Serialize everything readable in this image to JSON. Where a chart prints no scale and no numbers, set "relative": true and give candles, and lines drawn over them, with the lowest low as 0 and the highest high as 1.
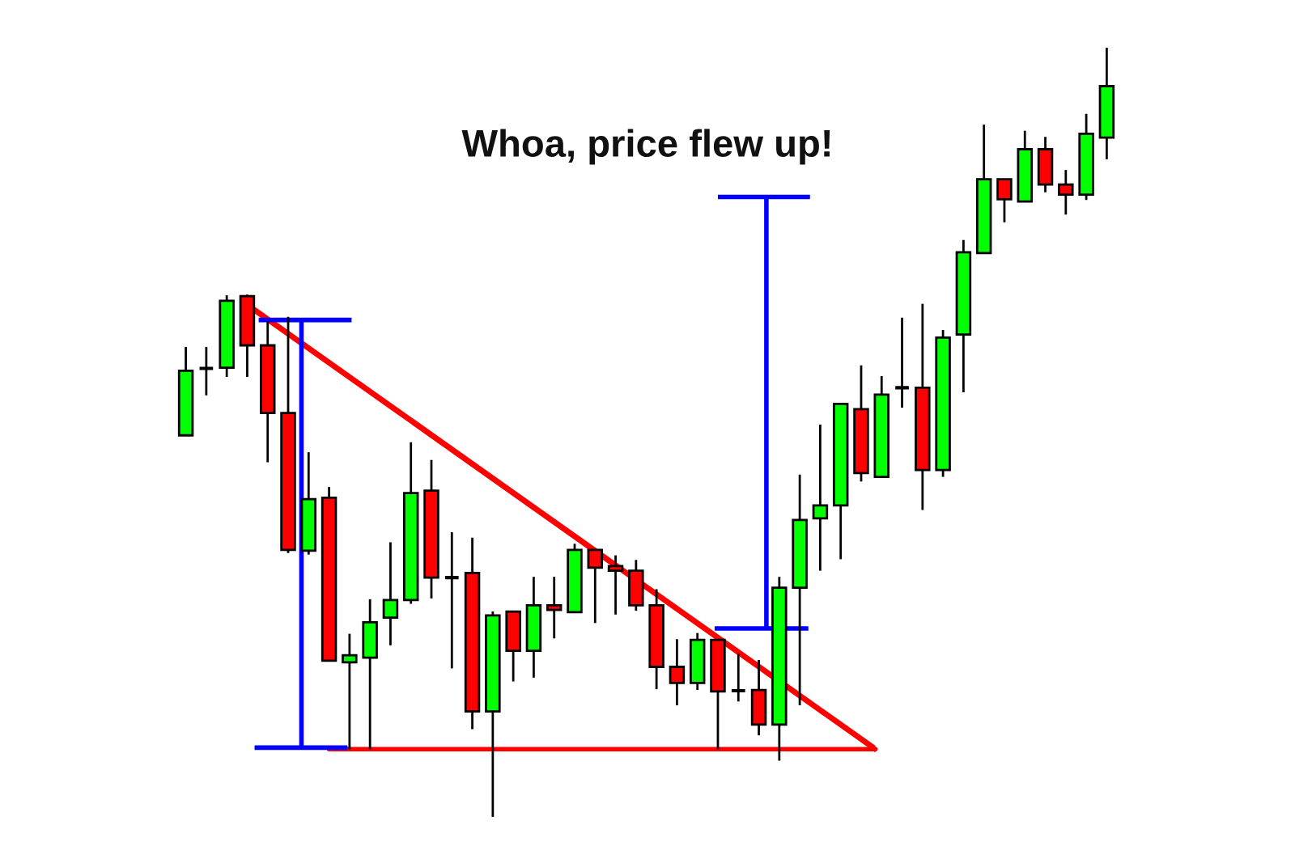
{
  "chart_data": {
    "type": "candlestick",
    "relative": true,
    "ref_lines": [
      {
        "axis": "y",
        "value": 0.088,
        "color": "#ff0000"
      }
    ],
    "annotations": [
      "Whoa, price flew up!"
    ],
    "categories": [
      null,
      null,
      null,
      null,
      null,
      null,
      null,
      null,
      null,
      null,
      null,
      null,
      null,
      null,
      null,
      null,
      null,
      null,
      null,
      null,
      null,
      null,
      null,
      null,
      null,
      null,
      null,
      null,
      null,
      null,
      null,
      null,
      null,
      null,
      null,
      null,
      null,
      null,
      null,
      null,
      null,
      null,
      null,
      null,
      null,
      null
    ],
    "series": [
      {
        "ohlc": [
          [
            0.496,
            0.611,
            0.496,
            0.58
          ],
          [
            0.583,
            0.611,
            0.548,
            0.583
          ],
          [
            0.584,
            0.678,
            0.572,
            0.671
          ],
          [
            0.677,
            0.679,
            0.572,
            0.613
          ],
          [
            0.613,
            0.644,
            0.461,
            0.525
          ],
          [
            0.525,
            0.65,
            0.343,
            0.347
          ],
          [
            0.346,
            0.474,
            0.341,
            0.413
          ],
          [
            0.415,
            0.429,
            0.203,
            0.203
          ],
          [
            0.201,
            0.238,
            0.088,
            0.21
          ],
          [
            0.207,
            0.283,
            0.088,
            0.253
          ],
          [
            0.259,
            0.357,
            0.223,
            0.282
          ],
          [
            0.282,
            0.487,
            0.277,
            0.421
          ],
          [
            0.424,
            0.464,
            0.284,
            0.311
          ],
          [
            0.311,
            0.37,
            0.193,
            0.311
          ],
          [
            0.317,
            0.363,
            0.114,
            0.137
          ],
          [
            0.137,
            0.267,
            0.0,
            0.262
          ],
          [
            0.267,
            0.267,
            0.176,
            0.216
          ],
          [
            0.216,
            0.312,
            0.181,
            0.275
          ],
          [
            0.275,
            0.312,
            0.232,
            0.269
          ],
          [
            0.266,
            0.355,
            0.266,
            0.347
          ],
          [
            0.347,
            0.347,
            0.252,
            0.324
          ],
          [
            0.326,
            0.34,
            0.263,
            0.32
          ],
          [
            0.32,
            0.334,
            0.268,
            0.275
          ],
          [
            0.275,
            0.296,
            0.166,
            0.195
          ],
          [
            0.195,
            0.231,
            0.145,
            0.174
          ],
          [
            0.174,
            0.239,
            0.165,
            0.23
          ],
          [
            0.23,
            0.23,
            0.088,
            0.163
          ],
          [
            0.164,
            0.212,
            0.15,
            0.164
          ],
          [
            0.165,
            0.204,
            0.106,
            0.12
          ],
          [
            0.12,
            0.312,
            0.073,
            0.298
          ],
          [
            0.298,
            0.445,
            0.145,
            0.386
          ],
          [
            0.388,
            0.51,
            0.32,
            0.405
          ],
          [
            0.405,
            0.537,
            0.335,
            0.537
          ],
          [
            0.53,
            0.587,
            0.436,
            0.447
          ],
          [
            0.442,
            0.573,
            0.442,
            0.549
          ],
          [
            0.558,
            0.649,
            0.532,
            0.558
          ],
          [
            0.558,
            0.667,
            0.399,
            0.451
          ],
          [
            0.451,
            0.633,
            0.442,
            0.623
          ],
          [
            0.627,
            0.75,
            0.552,
            0.734
          ],
          [
            0.733,
            0.9,
            0.733,
            0.829
          ],
          [
            0.829,
            0.829,
            0.773,
            0.803
          ],
          [
            0.8,
            0.892,
            0.8,
            0.868
          ],
          [
            0.868,
            0.884,
            0.812,
            0.822
          ],
          [
            0.822,
            0.841,
            0.783,
            0.809
          ],
          [
            0.809,
            0.914,
            0.802,
            0.888
          ],
          [
            0.883,
            1.0,
            0.855,
            0.95
          ]
        ],
        "colors": [
          "#00ff00",
          "#000000",
          "#00ff00",
          "#ff0000",
          "#ff0000",
          "#ff0000",
          "#00ff00",
          "#ff0000",
          "#00ff00",
          "#00ff00",
          "#00ff00",
          "#00ff00",
          "#ff0000",
          "#000000",
          "#ff0000",
          "#00ff00",
          "#ff0000",
          "#00ff00",
          "#ff0000",
          "#00ff00",
          "#ff0000",
          "#ff0000",
          "#ff0000",
          "#ff0000",
          "#ff0000",
          "#00ff00",
          "#ff0000",
          "#000000",
          "#ff0000",
          "#00ff00",
          "#00ff00",
          "#00ff00",
          "#00ff00",
          "#ff0000",
          "#00ff00",
          "#000000",
          "#ff0000",
          "#00ff00",
          "#00ff00",
          "#00ff00",
          "#ff0000",
          "#00ff00",
          "#ff0000",
          "#ff0000",
          "#00ff00",
          "#00ff00"
        ]
      }
    ]
  }
}
